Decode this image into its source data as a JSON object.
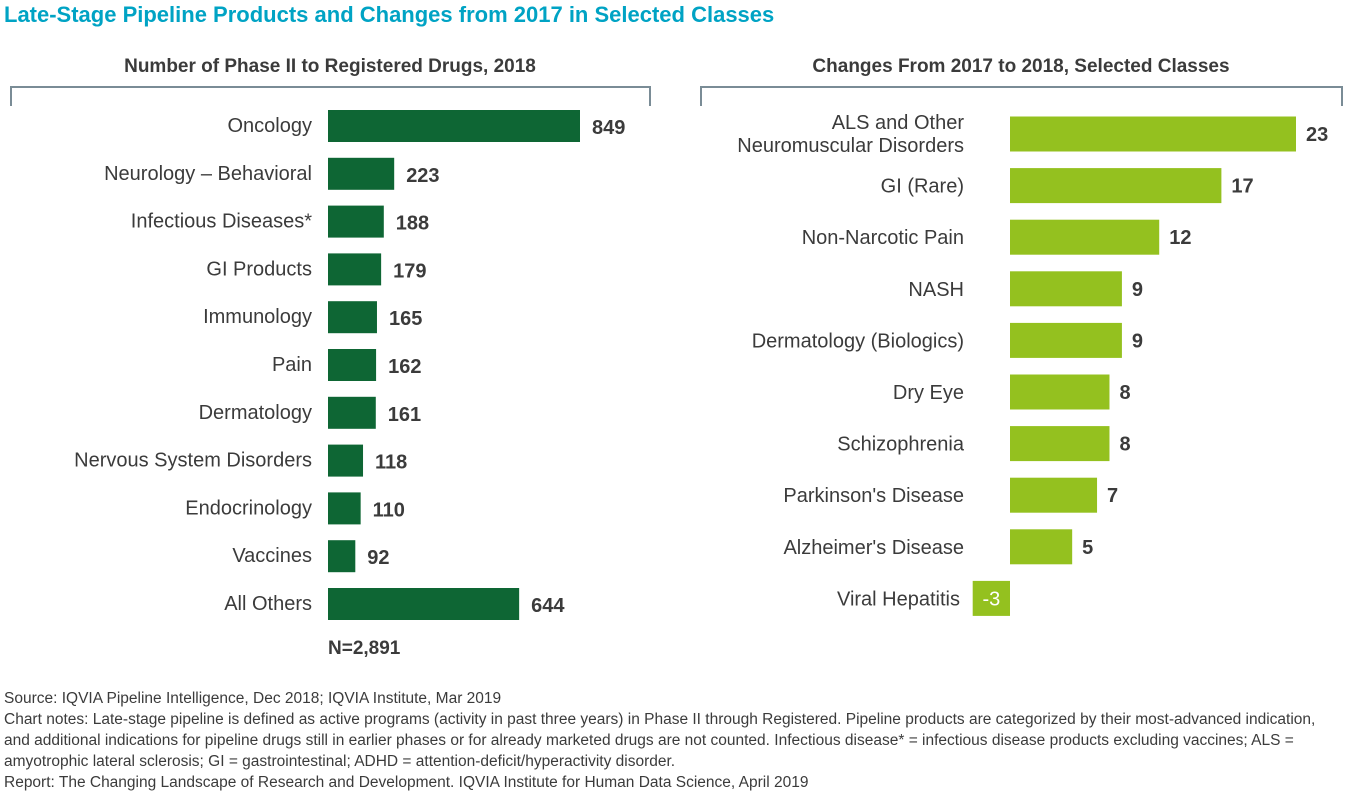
{
  "title": "Late-Stage Pipeline Products and Changes from 2017 in Selected Classes",
  "colors": {
    "title": "#00a3c4",
    "left_bar": "#0e6634",
    "right_bar": "#94c11f",
    "bracket": "#7a8c96",
    "text": "#3b3b3b"
  },
  "chart_data": [
    {
      "type": "bar",
      "orientation": "horizontal",
      "title": "Number of Phase II to Registered Drugs, 2018",
      "categories": [
        "Oncology",
        "Neurology – Behavioral",
        "Infectious Diseases*",
        "GI Products",
        "Immunology",
        "Pain",
        "Dermatology",
        "Nervous System Disorders",
        "Endocrinology",
        "Vaccines",
        "All Others"
      ],
      "values": [
        849,
        223,
        188,
        179,
        165,
        162,
        161,
        118,
        110,
        92,
        644
      ],
      "value_labels": [
        "849",
        "223",
        "188",
        "179",
        "165",
        "162",
        "161",
        "118",
        "110",
        "92",
        "644"
      ],
      "xlim": [
        0,
        849
      ],
      "total_label": "N=2,891"
    },
    {
      "type": "bar",
      "orientation": "horizontal",
      "title": "Changes From 2017 to 2018, Selected Classes",
      "categories": [
        [
          "ALS and Other",
          "Neuromuscular Disorders"
        ],
        [
          "GI (Rare)"
        ],
        [
          "Non-Narcotic Pain"
        ],
        [
          "NASH"
        ],
        [
          "Dermatology (Biologics)"
        ],
        [
          "Dry Eye"
        ],
        [
          "Schizophrenia"
        ],
        [
          "Parkinson's Disease"
        ],
        [
          "Alzheimer's Disease"
        ],
        [
          "Viral Hepatitis"
        ]
      ],
      "values": [
        23,
        17,
        12,
        9,
        9,
        8,
        8,
        7,
        5,
        -3
      ],
      "value_labels": [
        "23",
        "17",
        "12",
        "9",
        "9",
        "8",
        "8",
        "7",
        "5",
        "-3"
      ],
      "xlim": [
        -3,
        23
      ]
    }
  ],
  "footer": {
    "source": "Source: IQVIA Pipeline Intelligence, Dec 2018; IQVIA Institute, Mar 2019",
    "notes": "Chart notes: Late-stage pipeline is defined as active programs (activity in past three years) in Phase II through Registered. Pipeline products are categorized by their most-advanced indication, and additional indications for pipeline drugs still in earlier phases or for already marketed drugs are not counted. Infectious disease* = infectious disease products excluding vaccines; ALS = amyotrophic lateral sclerosis; GI = gastrointestinal; ADHD = attention-deficit/hyperactivity disorder.",
    "report": "Report: The Changing Landscape of Research and Development. IQVIA Institute for Human Data Science, April 2019"
  }
}
